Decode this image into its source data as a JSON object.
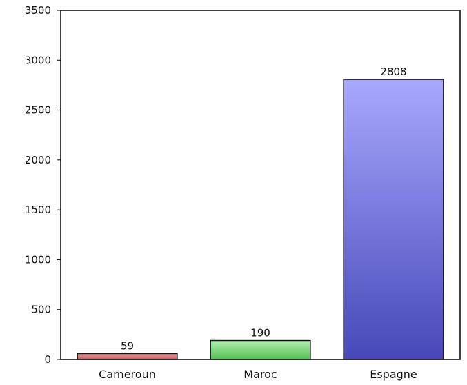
{
  "chart_data": {
    "type": "bar",
    "title": "",
    "xlabel": "",
    "ylabel": "",
    "categories": [
      "Cameroun",
      "Maroc",
      "Espagne"
    ],
    "values": [
      59,
      190,
      2808
    ],
    "data_labels": [
      "59",
      "190",
      "2808"
    ],
    "ylim": [
      0,
      3500
    ],
    "yticks": [
      0,
      500,
      1000,
      1500,
      2000,
      2500,
      3000,
      3500
    ],
    "ytick_labels": [
      "0",
      "500",
      "1000",
      "1500",
      "2000",
      "2500",
      "3000",
      "3500"
    ],
    "grid": false,
    "legend": "none",
    "bar_colors": [
      {
        "top": "#e49a9a",
        "bottom": "#c05a5a",
        "stroke": "#111111"
      },
      {
        "top": "#b2f0b2",
        "bottom": "#4fbf4f",
        "stroke": "#111111"
      },
      {
        "top": "#a8a8ff",
        "bottom": "#4747b8",
        "stroke": "#111111"
      }
    ]
  }
}
